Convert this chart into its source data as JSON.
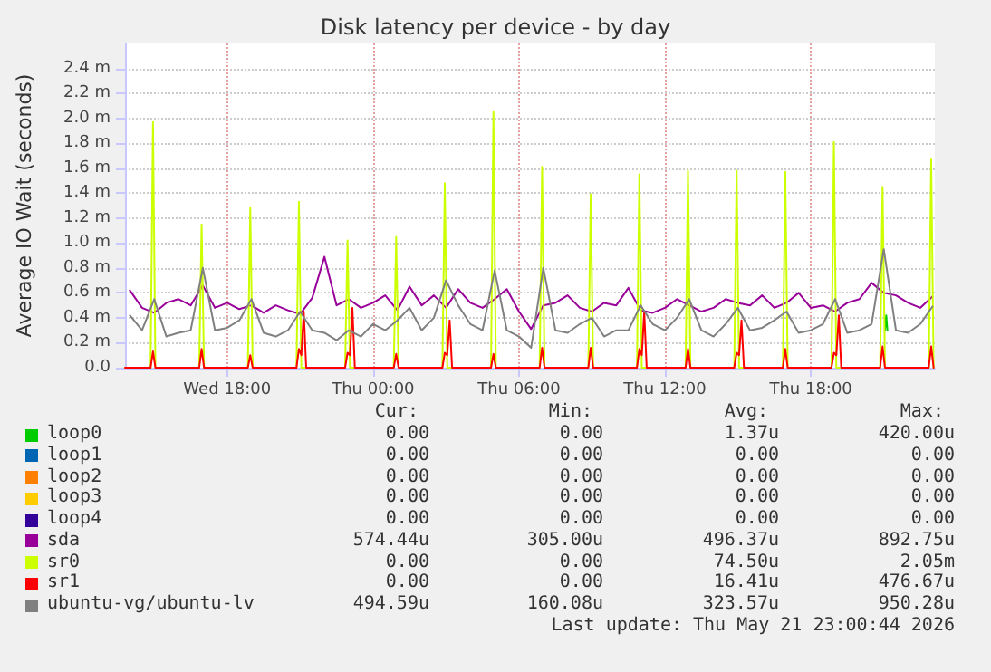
{
  "chart_data": {
    "type": "line",
    "title": "Disk latency per device - by day",
    "ylabel": "Average IO Wait (seconds)",
    "xlim": [
      "2026-05-20T13:48",
      "2026-05-21T23:06"
    ],
    "xticks": [
      {
        "value": "2026-05-20T18:00",
        "label": "Wed 18:00"
      },
      {
        "value": "2026-05-21T00:00",
        "label": "Thu 00:00"
      },
      {
        "value": "2026-05-21T06:00",
        "label": "Thu 06:00"
      },
      {
        "value": "2026-05-21T12:00",
        "label": "Thu 12:00"
      },
      {
        "value": "2026-05-21T18:00",
        "label": "Thu 18:00"
      }
    ],
    "ylim": [
      0,
      2.6
    ],
    "yticks": [
      {
        "value": 0,
        "label": "0.0"
      },
      {
        "value": 0.2,
        "label": "0.2 m"
      },
      {
        "value": 0.4,
        "label": "0.4 m"
      },
      {
        "value": 0.6,
        "label": "0.6 m"
      },
      {
        "value": 0.8,
        "label": "0.8 m"
      },
      {
        "value": 1.0,
        "label": "1.0 m"
      },
      {
        "value": 1.2,
        "label": "1.2 m"
      },
      {
        "value": 1.4,
        "label": "1.4 m"
      },
      {
        "value": 1.6,
        "label": "1.6 m"
      },
      {
        "value": 1.8,
        "label": "1.8 m"
      },
      {
        "value": 2.0,
        "label": "2.0 m"
      },
      {
        "value": 2.2,
        "label": "2.2 m"
      },
      {
        "value": 2.4,
        "label": "2.4 m"
      }
    ],
    "grid": true,
    "legend": "bottom",
    "marker": "none",
    "line_style": "solid",
    "x": [
      "2026-05-20T14:00",
      "2026-05-20T14:30",
      "2026-05-20T15:00",
      "2026-05-20T15:30",
      "2026-05-20T16:00",
      "2026-05-20T16:30",
      "2026-05-20T17:00",
      "2026-05-20T17:30",
      "2026-05-20T18:00",
      "2026-05-20T18:30",
      "2026-05-20T19:00",
      "2026-05-20T19:30",
      "2026-05-20T20:00",
      "2026-05-20T20:30",
      "2026-05-20T21:00",
      "2026-05-20T21:30",
      "2026-05-20T22:00",
      "2026-05-20T22:30",
      "2026-05-20T23:00",
      "2026-05-20T23:30",
      "2026-05-21T00:00",
      "2026-05-21T00:30",
      "2026-05-21T01:00",
      "2026-05-21T01:30",
      "2026-05-21T02:00",
      "2026-05-21T02:30",
      "2026-05-21T03:00",
      "2026-05-21T03:30",
      "2026-05-21T04:00",
      "2026-05-21T04:30",
      "2026-05-21T05:00",
      "2026-05-21T05:30",
      "2026-05-21T06:00",
      "2026-05-21T06:30",
      "2026-05-21T07:00",
      "2026-05-21T07:30",
      "2026-05-21T08:00",
      "2026-05-21T08:30",
      "2026-05-21T09:00",
      "2026-05-21T09:30",
      "2026-05-21T10:00",
      "2026-05-21T10:30",
      "2026-05-21T11:00",
      "2026-05-21T11:30",
      "2026-05-21T12:00",
      "2026-05-21T12:30",
      "2026-05-21T13:00",
      "2026-05-21T13:30",
      "2026-05-21T14:00",
      "2026-05-21T14:30",
      "2026-05-21T15:00",
      "2026-05-21T15:30",
      "2026-05-21T16:00",
      "2026-05-21T16:30",
      "2026-05-21T17:00",
      "2026-05-21T17:30",
      "2026-05-21T18:00",
      "2026-05-21T18:30",
      "2026-05-21T19:00",
      "2026-05-21T19:30",
      "2026-05-21T20:00",
      "2026-05-21T20:30",
      "2026-05-21T21:00",
      "2026-05-21T21:30",
      "2026-05-21T22:00",
      "2026-05-21T22:30",
      "2026-05-21T23:00"
    ],
    "series": [
      {
        "name": "loop0",
        "color": "#00cc00",
        "x": [
          "2026-05-21T21:03",
          "2026-05-21T21:06",
          "2026-05-21T21:09"
        ],
        "values": [
          0.3,
          0.42,
          0.3
        ]
      },
      {
        "name": "loop1",
        "color": "#0066b3",
        "values": [
          null,
          null,
          null,
          null,
          null,
          null,
          null,
          null,
          null,
          null,
          null,
          null,
          null,
          null,
          null,
          null,
          null,
          null,
          null,
          null,
          null,
          null,
          null,
          null,
          null,
          null,
          null,
          null,
          null,
          null,
          null,
          null,
          null,
          null,
          null,
          null,
          null,
          null,
          null,
          null,
          null,
          null,
          null,
          null,
          null,
          null,
          null,
          null,
          null,
          null,
          null,
          null,
          null,
          null,
          null,
          null,
          null,
          null,
          null,
          null,
          null,
          null,
          null,
          null,
          null,
          null,
          null
        ]
      },
      {
        "name": "loop2",
        "color": "#ff8000",
        "values": [
          null,
          null,
          null,
          null,
          null,
          null,
          null,
          null,
          null,
          null,
          null,
          null,
          null,
          null,
          null,
          null,
          null,
          null,
          null,
          null,
          null,
          null,
          null,
          null,
          null,
          null,
          null,
          null,
          null,
          null,
          null,
          null,
          null,
          null,
          null,
          null,
          null,
          null,
          null,
          null,
          null,
          null,
          null,
          null,
          null,
          null,
          null,
          null,
          null,
          null,
          null,
          null,
          null,
          null,
          null,
          null,
          null,
          null,
          null,
          null,
          null,
          null,
          null,
          null,
          null,
          null,
          null
        ]
      },
      {
        "name": "loop3",
        "color": "#ffcc00",
        "values": [
          null,
          null,
          null,
          null,
          null,
          null,
          null,
          null,
          null,
          null,
          null,
          null,
          null,
          null,
          null,
          null,
          null,
          null,
          null,
          null,
          null,
          null,
          null,
          null,
          null,
          null,
          null,
          null,
          null,
          null,
          null,
          null,
          null,
          null,
          null,
          null,
          null,
          null,
          null,
          null,
          null,
          null,
          null,
          null,
          null,
          null,
          null,
          null,
          null,
          null,
          null,
          null,
          null,
          null,
          null,
          null,
          null,
          null,
          null,
          null,
          null,
          null,
          null,
          null,
          null,
          null,
          null
        ]
      },
      {
        "name": "loop4",
        "color": "#330099",
        "values": [
          null,
          null,
          null,
          null,
          null,
          null,
          null,
          null,
          null,
          null,
          null,
          null,
          null,
          null,
          null,
          null,
          null,
          null,
          null,
          null,
          null,
          null,
          null,
          null,
          null,
          null,
          null,
          null,
          null,
          null,
          null,
          null,
          null,
          null,
          null,
          null,
          null,
          null,
          null,
          null,
          null,
          null,
          null,
          null,
          null,
          null,
          null,
          null,
          null,
          null,
          null,
          null,
          null,
          null,
          null,
          null,
          null,
          null,
          null,
          null,
          null,
          null,
          null,
          null,
          null,
          null,
          null
        ]
      },
      {
        "name": "sda",
        "color": "#990099",
        "values": [
          0.62,
          0.48,
          0.44,
          0.52,
          0.55,
          0.5,
          0.66,
          0.48,
          0.52,
          0.47,
          0.5,
          0.44,
          0.5,
          0.46,
          0.43,
          0.56,
          0.89,
          0.5,
          0.55,
          0.48,
          0.52,
          0.58,
          0.46,
          0.65,
          0.5,
          0.58,
          0.48,
          0.63,
          0.52,
          0.48,
          0.55,
          0.63,
          0.45,
          0.31,
          0.5,
          0.52,
          0.58,
          0.48,
          0.45,
          0.52,
          0.5,
          0.64,
          0.46,
          0.44,
          0.48,
          0.55,
          0.5,
          0.45,
          0.48,
          0.55,
          0.52,
          0.5,
          0.58,
          0.48,
          0.52,
          0.6,
          0.48,
          0.5,
          0.45,
          0.52,
          0.55,
          0.68,
          0.6,
          0.58,
          0.52,
          0.48,
          0.57
        ]
      },
      {
        "name": "sr0",
        "color": "#ccff00",
        "x": [
          "2026-05-20T13:48",
          "2026-05-20T14:51",
          "2026-05-20T14:57",
          "2026-05-20T15:03",
          "2026-05-20T16:51",
          "2026-05-20T16:57",
          "2026-05-20T17:03",
          "2026-05-20T18:51",
          "2026-05-20T18:57",
          "2026-05-20T19:03",
          "2026-05-20T20:51",
          "2026-05-20T20:57",
          "2026-05-20T21:03",
          "2026-05-20T22:51",
          "2026-05-20T22:57",
          "2026-05-20T23:03",
          "2026-05-21T00:51",
          "2026-05-21T00:57",
          "2026-05-21T01:03",
          "2026-05-21T02:51",
          "2026-05-21T02:57",
          "2026-05-21T03:03",
          "2026-05-21T04:51",
          "2026-05-21T04:57",
          "2026-05-21T05:03",
          "2026-05-21T06:51",
          "2026-05-21T06:57",
          "2026-05-21T07:03",
          "2026-05-21T08:51",
          "2026-05-21T08:57",
          "2026-05-21T09:03",
          "2026-05-21T10:51",
          "2026-05-21T10:57",
          "2026-05-21T11:03",
          "2026-05-21T12:51",
          "2026-05-21T12:57",
          "2026-05-21T13:03",
          "2026-05-21T14:51",
          "2026-05-21T14:57",
          "2026-05-21T15:03",
          "2026-05-21T16:51",
          "2026-05-21T16:57",
          "2026-05-21T17:03",
          "2026-05-21T18:51",
          "2026-05-21T18:57",
          "2026-05-21T19:03",
          "2026-05-21T20:51",
          "2026-05-21T20:57",
          "2026-05-21T21:03",
          "2026-05-21T22:51",
          "2026-05-21T22:57",
          "2026-05-21T23:03"
        ],
        "values": [
          0,
          0,
          1.97,
          0,
          0,
          1.15,
          0,
          0,
          1.28,
          0,
          0,
          1.33,
          0,
          0,
          1.02,
          0,
          0,
          1.05,
          0,
          0,
          1.48,
          0,
          0,
          2.05,
          0,
          0,
          1.61,
          0,
          0,
          1.39,
          0,
          0,
          1.55,
          0,
          0,
          1.58,
          0,
          0,
          1.58,
          0,
          0,
          1.57,
          0,
          0,
          1.81,
          0,
          0,
          1.45,
          0,
          0,
          1.67,
          0
        ]
      },
      {
        "name": "sr1",
        "color": "#ff0000",
        "x": [
          "2026-05-20T13:48",
          "2026-05-20T14:51",
          "2026-05-20T14:57",
          "2026-05-20T15:03",
          "2026-05-20T16:51",
          "2026-05-20T16:57",
          "2026-05-20T17:03",
          "2026-05-20T18:51",
          "2026-05-20T18:57",
          "2026-05-20T19:03",
          "2026-05-20T20:51",
          "2026-05-20T20:57",
          "2026-05-20T21:03",
          "2026-05-20T21:09",
          "2026-05-20T21:15",
          "2026-05-20T22:51",
          "2026-05-20T22:57",
          "2026-05-20T23:03",
          "2026-05-20T23:09",
          "2026-05-20T23:15",
          "2026-05-21T00:51",
          "2026-05-21T00:57",
          "2026-05-21T01:03",
          "2026-05-21T02:51",
          "2026-05-21T02:57",
          "2026-05-21T03:03",
          "2026-05-21T03:09",
          "2026-05-21T03:15",
          "2026-05-21T04:51",
          "2026-05-21T04:57",
          "2026-05-21T05:03",
          "2026-05-21T06:51",
          "2026-05-21T06:57",
          "2026-05-21T07:03",
          "2026-05-21T08:51",
          "2026-05-21T08:57",
          "2026-05-21T09:03",
          "2026-05-21T10:51",
          "2026-05-21T10:57",
          "2026-05-21T11:03",
          "2026-05-21T11:09",
          "2026-05-21T11:15",
          "2026-05-21T12:51",
          "2026-05-21T12:57",
          "2026-05-21T13:03",
          "2026-05-21T14:51",
          "2026-05-21T14:57",
          "2026-05-21T15:03",
          "2026-05-21T15:09",
          "2026-05-21T15:15",
          "2026-05-21T16:51",
          "2026-05-21T16:57",
          "2026-05-21T17:03",
          "2026-05-21T18:51",
          "2026-05-21T18:57",
          "2026-05-21T19:03",
          "2026-05-21T19:09",
          "2026-05-21T19:15",
          "2026-05-21T20:51",
          "2026-05-21T20:57",
          "2026-05-21T21:03",
          "2026-05-21T22:51",
          "2026-05-21T22:57",
          "2026-05-21T23:03",
          "2026-05-21T23:06"
        ],
        "values": [
          0,
          0,
          0.13,
          0,
          0,
          0.15,
          0,
          0,
          0.1,
          0,
          0,
          0.15,
          0.1,
          0.45,
          0,
          0,
          0.12,
          0.1,
          0.48,
          0,
          0,
          0.11,
          0,
          0,
          0.12,
          0.1,
          0.38,
          0,
          0,
          0.11,
          0,
          0,
          0.16,
          0,
          0,
          0.16,
          0,
          0,
          0.15,
          0.1,
          0.45,
          0,
          0,
          0.15,
          0,
          0,
          0.12,
          0.1,
          0.38,
          0,
          0,
          0.15,
          0,
          0,
          0.12,
          0.1,
          0.42,
          0,
          0,
          0.17,
          0,
          0,
          0.17,
          0,
          0
        ]
      },
      {
        "name": "ubuntu-vg/ubuntu-lv",
        "color": "#808080",
        "values": [
          0.42,
          0.3,
          0.55,
          0.25,
          0.28,
          0.3,
          0.8,
          0.3,
          0.32,
          0.38,
          0.55,
          0.28,
          0.25,
          0.3,
          0.45,
          0.3,
          0.28,
          0.22,
          0.3,
          0.25,
          0.35,
          0.3,
          0.38,
          0.48,
          0.3,
          0.4,
          0.7,
          0.5,
          0.35,
          0.3,
          0.78,
          0.3,
          0.25,
          0.16,
          0.8,
          0.3,
          0.28,
          0.35,
          0.4,
          0.25,
          0.3,
          0.3,
          0.5,
          0.35,
          0.3,
          0.4,
          0.55,
          0.3,
          0.25,
          0.35,
          0.48,
          0.3,
          0.32,
          0.38,
          0.45,
          0.28,
          0.3,
          0.35,
          0.55,
          0.28,
          0.3,
          0.35,
          0.95,
          0.3,
          0.28,
          0.35,
          0.49
        ]
      }
    ],
    "annotations": [
      "Cur:",
      "Min:",
      "Avg:",
      "Max:",
      "0.00",
      "0.00",
      "1.37u",
      "420.00u",
      "0.00",
      "0.00",
      "0.00",
      "0.00",
      "0.00",
      "0.00",
      "0.00",
      "0.00",
      "0.00",
      "0.00",
      "0.00",
      "0.00",
      "0.00",
      "0.00",
      "0.00",
      "0.00",
      "574.44u",
      "305.00u",
      "496.37u",
      "892.75u",
      "0.00",
      "0.00",
      "74.50u",
      "2.05m",
      "0.00",
      "0.00",
      "16.41u",
      "476.67u",
      "494.59u",
      "160.08u",
      "323.57u",
      "950.28u",
      "Last update: Thu May 21 23:00:44 2026"
    ]
  }
}
